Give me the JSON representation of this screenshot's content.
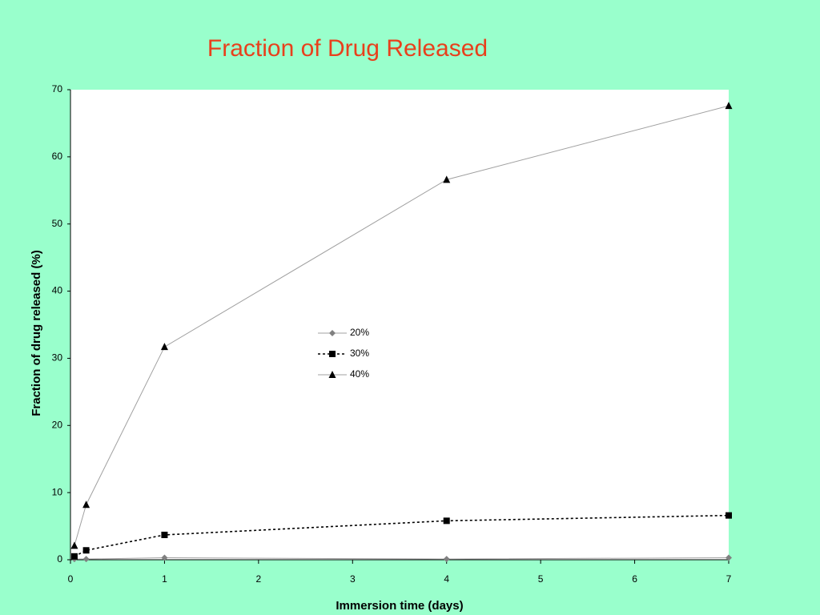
{
  "chart_data": {
    "type": "line",
    "title": "Fraction of Drug Released",
    "x_label": "Immersion time (days)",
    "y_label": "Fraction of drug released (%)",
    "x": [
      0.042,
      0.167,
      1,
      4,
      7
    ],
    "series": [
      {
        "name": "20%",
        "color": "#808080",
        "line_color": "#a0a0a0",
        "line_style": "solid",
        "marker": "diamond",
        "values": [
          0.1,
          0.1,
          0.3,
          0.1,
          0.3
        ]
      },
      {
        "name": "30%",
        "color": "#000000",
        "line_color": "#000000",
        "line_style": "dashed",
        "marker": "square",
        "values": [
          0.5,
          1.4,
          3.7,
          5.8,
          6.6
        ]
      },
      {
        "name": "40%",
        "color": "#000000",
        "line_color": "#a0a0a0",
        "line_style": "solid",
        "marker": "triangle",
        "values": [
          2.1,
          8.2,
          31.7,
          56.6,
          67.6
        ]
      }
    ],
    "xlim": [
      0,
      7
    ],
    "xticks": [
      0,
      1,
      2,
      3,
      4,
      5,
      6,
      7
    ],
    "ylim": [
      0,
      70
    ],
    "yticks": [
      0,
      10,
      20,
      30,
      40,
      50,
      60,
      70
    ],
    "grid": false,
    "legend": "center"
  }
}
